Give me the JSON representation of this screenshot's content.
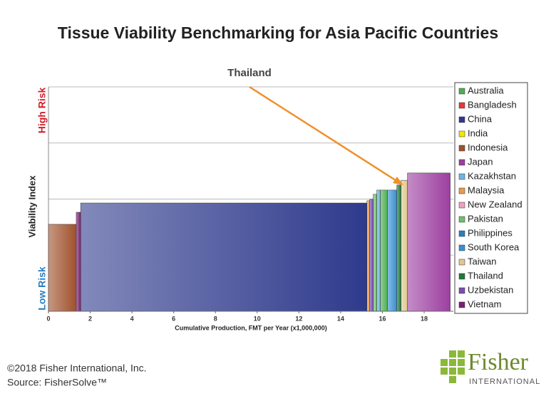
{
  "chart_data": {
    "type": "variable-width-bar",
    "title": "Tissue Viability Benchmarking for Asia Pacific Countries",
    "annotation": "Thailand",
    "x_label": "Cumulative Production, FMT per Year (x1,000,000)",
    "y_label": "Viability Index",
    "y_high_label": "High Risk",
    "y_low_label": "Low Risk",
    "xlim": [
      0,
      19.4
    ],
    "xticks": [
      0,
      2,
      4,
      6,
      8,
      10,
      12,
      14,
      16,
      18
    ],
    "ylim": [
      0,
      8
    ],
    "ygrid": [
      0,
      2,
      4,
      6,
      8
    ],
    "series": [
      {
        "name": "Australia",
        "color": "#4caf50",
        "x_range": [
          15.9,
          16.25
        ],
        "value": 4.32
      },
      {
        "name": "Bangladesh",
        "color": "#e53935",
        "x_range": null,
        "value": null
      },
      {
        "name": "China",
        "color": "#2e3a8c",
        "x_range": [
          1.54,
          15.26
        ],
        "value": 3.86
      },
      {
        "name": "India",
        "color": "#f2e600",
        "x_range": null,
        "value": null
      },
      {
        "name": "Indonesia",
        "color": "#a0522d",
        "x_range": [
          0,
          1.33
        ],
        "value": 3.1
      },
      {
        "name": "Japan",
        "color": "#9c3fa0",
        "x_range": [
          17.2,
          19.25
        ],
        "value": 4.93
      },
      {
        "name": "Kazakhstan",
        "color": "#6fb4e0",
        "x_range": [
          15.73,
          15.9
        ],
        "value": 4.32
      },
      {
        "name": "Malaysia",
        "color": "#e89b4a",
        "x_range": [
          15.26,
          15.39
        ],
        "value": 3.94
      },
      {
        "name": "New Zealand",
        "color": "#f0a0c0",
        "x_range": null,
        "value": null
      },
      {
        "name": "Pakistan",
        "color": "#6cbf6c",
        "x_range": [
          15.56,
          15.73
        ],
        "value": 4.17
      },
      {
        "name": "Philippines",
        "color": "#2a7fc0",
        "x_range": null,
        "value": null
      },
      {
        "name": "South Korea",
        "color": "#3a8fd0",
        "x_range": [
          16.25,
          16.69
        ],
        "value": 4.32
      },
      {
        "name": "Taiwan",
        "color": "#e0c890",
        "x_range": [
          16.89,
          17.2
        ],
        "value": 4.67
      },
      {
        "name": "Thailand",
        "color": "#1e7a3a",
        "x_range": [
          16.69,
          16.89
        ],
        "value": 4.5
      },
      {
        "name": "Uzbekistan",
        "color": "#7a4fb0",
        "x_range": [
          15.39,
          15.56
        ],
        "value": 3.99
      },
      {
        "name": "Vietnam",
        "color": "#7a2070",
        "x_range": [
          1.33,
          1.54
        ],
        "value": 3.53
      }
    ]
  },
  "footer": {
    "copyright": "©2018 Fisher International, Inc.",
    "source": "Source: FisherSolve™"
  },
  "logo": {
    "name": "Fisher",
    "sub": "INTERNATIONAL"
  }
}
